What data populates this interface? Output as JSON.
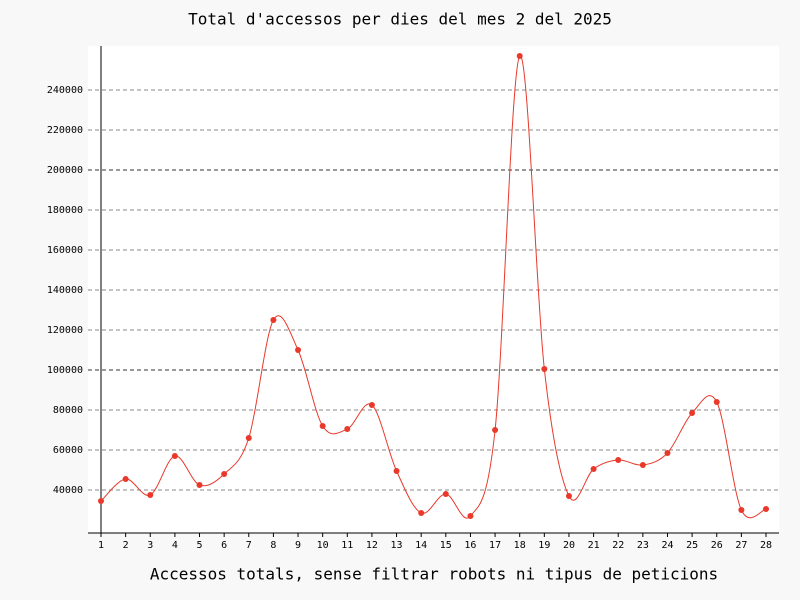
{
  "chart_data": {
    "type": "line",
    "title": "Total d'accessos per dies del mes 2 del 2025",
    "x_label": "Accessos totals, sense filtrar robots ni tipus de peticions",
    "categories": [
      "1",
      "2",
      "3",
      "4",
      "5",
      "6",
      "7",
      "8",
      "9",
      "10",
      "11",
      "12",
      "13",
      "14",
      "15",
      "16",
      "17",
      "18",
      "19",
      "20",
      "21",
      "22",
      "23",
      "24",
      "25",
      "26",
      "27",
      "28"
    ],
    "values": [
      34500,
      45500,
      37500,
      57000,
      42500,
      48000,
      66000,
      125000,
      110000,
      72000,
      70500,
      82500,
      49500,
      28500,
      38000,
      27000,
      70000,
      257000,
      100500,
      37000,
      50500,
      55000,
      52500,
      58500,
      78500,
      84000,
      30000,
      30500
    ],
    "color": "#e8392b",
    "smooth": true,
    "ylim": [
      18500,
      262000
    ],
    "yticks": [
      40000,
      60000,
      80000,
      100000,
      120000,
      140000,
      160000,
      180000,
      200000,
      220000,
      240000
    ],
    "grid": true
  }
}
